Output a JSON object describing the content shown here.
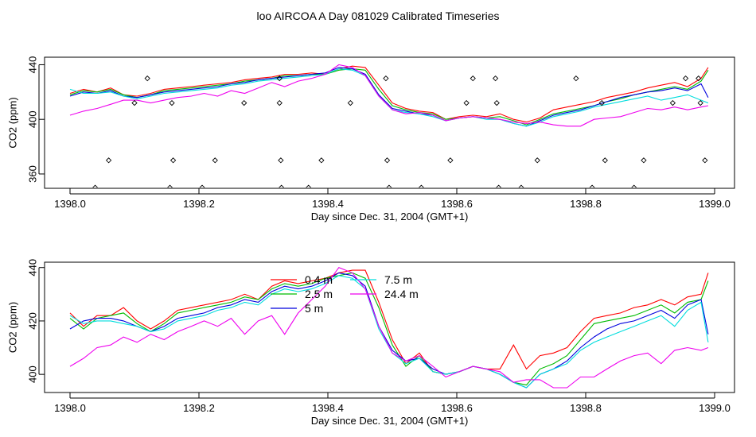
{
  "title": "loo AIRCOA A  Day 081029  Calibrated Timeseries",
  "chart_data": [
    {
      "type": "scatter",
      "xlabel": "Day since Dec. 31, 2004 (GMT+1)",
      "ylabel": "CO2 (ppm)",
      "xlim": [
        1398.0,
        1399.0
      ],
      "ylim": [
        349.5,
        445.5
      ],
      "xticks": [
        "1398.0",
        "1398.2",
        "1398.4",
        "1398.6",
        "1398.8",
        "1399.0"
      ],
      "yticks": [
        "360",
        "400",
        "440"
      ],
      "grid": false,
      "series": [
        {
          "color": "#ff0000",
          "x": [
            1398.0,
            1398.021,
            1398.042,
            1398.063,
            1398.083,
            1398.104,
            1398.125,
            1398.146,
            1398.167,
            1398.188,
            1398.208,
            1398.229,
            1398.25,
            1398.271,
            1398.292,
            1398.313,
            1398.333,
            1398.354,
            1398.375,
            1398.396,
            1398.417,
            1398.438,
            1398.458,
            1398.479,
            1398.5,
            1398.521,
            1398.542,
            1398.563,
            1398.583,
            1398.604,
            1398.625,
            1398.646,
            1398.667,
            1398.688,
            1398.708,
            1398.729,
            1398.75,
            1398.771,
            1398.792,
            1398.813,
            1398.833,
            1398.854,
            1398.875,
            1398.896,
            1398.917,
            1398.938,
            1398.958,
            1398.979,
            1398.99
          ],
          "y": [
            419,
            422,
            420,
            423,
            418,
            417,
            419,
            422,
            423,
            424,
            425,
            426,
            427,
            429,
            430,
            431,
            433,
            433,
            434,
            433,
            437,
            439,
            438,
            425,
            412,
            408,
            406,
            405,
            400,
            402,
            403,
            402,
            404,
            400,
            398,
            401,
            407,
            409,
            411,
            413,
            416,
            418,
            420,
            423,
            425,
            427,
            424,
            430,
            438
          ]
        },
        {
          "color": "#00bb00",
          "x": [
            1398.0,
            1398.021,
            1398.042,
            1398.063,
            1398.083,
            1398.104,
            1398.125,
            1398.146,
            1398.167,
            1398.188,
            1398.208,
            1398.229,
            1398.25,
            1398.271,
            1398.292,
            1398.313,
            1398.333,
            1398.354,
            1398.375,
            1398.396,
            1398.417,
            1398.438,
            1398.458,
            1398.479,
            1398.5,
            1398.521,
            1398.542,
            1398.563,
            1398.583,
            1398.604,
            1398.625,
            1398.646,
            1398.667,
            1398.688,
            1398.708,
            1398.729,
            1398.75,
            1398.771,
            1398.792,
            1398.813,
            1398.833,
            1398.854,
            1398.875,
            1398.896,
            1398.917,
            1398.938,
            1398.958,
            1398.979,
            1398.99
          ],
          "y": [
            418,
            421,
            420,
            422,
            418,
            416,
            418,
            421,
            422,
            423,
            424,
            425,
            426,
            428,
            429,
            430,
            432,
            432,
            433,
            433,
            436,
            437,
            436,
            422,
            410,
            407,
            405,
            404,
            400,
            401,
            402,
            401,
            402,
            399,
            396,
            400,
            404,
            406,
            408,
            410,
            413,
            415,
            418,
            420,
            422,
            424,
            422,
            428,
            436
          ]
        },
        {
          "color": "#0000dd",
          "x": [
            1398.0,
            1398.021,
            1398.042,
            1398.063,
            1398.083,
            1398.104,
            1398.125,
            1398.146,
            1398.167,
            1398.188,
            1398.208,
            1398.229,
            1398.25,
            1398.271,
            1398.292,
            1398.313,
            1398.333,
            1398.354,
            1398.375,
            1398.396,
            1398.417,
            1398.438,
            1398.458,
            1398.479,
            1398.5,
            1398.521,
            1398.542,
            1398.563,
            1398.583,
            1398.604,
            1398.625,
            1398.646,
            1398.667,
            1398.688,
            1398.708,
            1398.729,
            1398.75,
            1398.771,
            1398.792,
            1398.813,
            1398.833,
            1398.854,
            1398.875,
            1398.896,
            1398.917,
            1398.938,
            1398.958,
            1398.979,
            1398.99
          ],
          "y": [
            417,
            420,
            419,
            421,
            417,
            416,
            418,
            420,
            421,
            422,
            423,
            424,
            426,
            427,
            429,
            430,
            431,
            432,
            433,
            434,
            438,
            437,
            433,
            418,
            408,
            406,
            404,
            403,
            399,
            401,
            402,
            401,
            400,
            397,
            395,
            399,
            403,
            405,
            407,
            410,
            413,
            416,
            418,
            420,
            421,
            423,
            421,
            426,
            416
          ]
        },
        {
          "color": "#00dddd",
          "x": [
            1398.0,
            1398.021,
            1398.042,
            1398.063,
            1398.083,
            1398.104,
            1398.125,
            1398.146,
            1398.167,
            1398.188,
            1398.208,
            1398.229,
            1398.25,
            1398.271,
            1398.292,
            1398.313,
            1398.333,
            1398.354,
            1398.375,
            1398.396,
            1398.417,
            1398.438,
            1398.458,
            1398.479,
            1398.5,
            1398.521,
            1398.542,
            1398.563,
            1398.583,
            1398.604,
            1398.625,
            1398.646,
            1398.667,
            1398.688,
            1398.708,
            1398.729,
            1398.75,
            1398.771,
            1398.792,
            1398.813,
            1398.833,
            1398.854,
            1398.875,
            1398.896,
            1398.917,
            1398.938,
            1398.958,
            1398.979,
            1398.99
          ],
          "y": [
            422,
            419,
            419,
            420,
            417,
            415,
            417,
            419,
            420,
            421,
            422,
            423,
            425,
            426,
            428,
            429,
            430,
            431,
            432,
            433,
            437,
            436,
            432,
            417,
            407,
            405,
            404,
            402,
            399,
            401,
            402,
            400,
            400,
            397,
            395,
            398,
            402,
            404,
            406,
            409,
            411,
            413,
            415,
            417,
            414,
            416,
            418,
            414,
            412
          ]
        },
        {
          "color": "#ee00ee",
          "x": [
            1398.0,
            1398.021,
            1398.042,
            1398.063,
            1398.083,
            1398.104,
            1398.125,
            1398.146,
            1398.167,
            1398.188,
            1398.208,
            1398.229,
            1398.25,
            1398.271,
            1398.292,
            1398.313,
            1398.333,
            1398.354,
            1398.375,
            1398.396,
            1398.417,
            1398.438,
            1398.458,
            1398.479,
            1398.5,
            1398.521,
            1398.542,
            1398.563,
            1398.583,
            1398.604,
            1398.625,
            1398.646,
            1398.667,
            1398.688,
            1398.708,
            1398.729,
            1398.75,
            1398.771,
            1398.792,
            1398.813,
            1398.833,
            1398.854,
            1398.875,
            1398.896,
            1398.917,
            1398.938,
            1398.958,
            1398.979,
            1398.99
          ],
          "y": [
            403,
            406,
            408,
            411,
            414,
            414,
            412,
            414,
            416,
            417,
            419,
            417,
            421,
            419,
            423,
            427,
            424,
            428,
            430,
            433,
            440,
            438,
            432,
            417,
            407,
            404,
            405,
            403,
            399,
            401,
            402,
            401,
            400,
            398,
            397,
            398,
            396,
            395,
            395,
            400,
            401,
            402,
            405,
            408,
            407,
            409,
            407,
            409,
            410
          ]
        },
        {
          "color": "#000000",
          "x": [
            1398.039,
            1398.06,
            1398.1,
            1398.12,
            1398.155,
            1398.158,
            1398.16,
            1398.205,
            1398.225,
            1398.27,
            1398.325,
            1398.325,
            1398.327,
            1398.328,
            1398.37,
            1398.39,
            1398.435,
            1398.49,
            1398.492,
            1398.495,
            1398.545,
            1398.59,
            1398.615,
            1398.625,
            1398.66,
            1398.662,
            1398.665,
            1398.7,
            1398.725,
            1398.785,
            1398.81,
            1398.825,
            1398.83,
            1398.875,
            1398.89,
            1398.935,
            1398.955,
            1398.975,
            1398.978,
            1398.985
          ],
          "y": [
            350,
            370,
            412,
            430,
            350,
            412,
            370,
            350,
            370,
            412,
            430,
            412,
            370,
            350,
            350,
            370,
            412,
            430,
            370,
            350,
            350,
            370,
            412,
            430,
            430,
            412,
            350,
            350,
            370,
            430,
            350,
            412,
            370,
            350,
            370,
            412,
            430,
            430,
            412,
            370
          ]
        }
      ]
    },
    {
      "type": "line",
      "xlabel": "Day since Dec. 31, 2004 (GMT+1)",
      "ylabel": "CO2 (ppm)",
      "xlim": [
        1398.0,
        1399.0
      ],
      "ylim": [
        393.2,
        442.0
      ],
      "xticks": [
        "1398.0",
        "1398.2",
        "1398.4",
        "1398.6",
        "1398.8",
        "1399.0"
      ],
      "yticks": [
        "400",
        "420",
        "440"
      ],
      "grid": false,
      "legend": "top-center",
      "x": [
        1398.0,
        1398.021,
        1398.042,
        1398.063,
        1398.083,
        1398.104,
        1398.125,
        1398.146,
        1398.167,
        1398.188,
        1398.208,
        1398.229,
        1398.25,
        1398.271,
        1398.292,
        1398.313,
        1398.333,
        1398.354,
        1398.375,
        1398.396,
        1398.417,
        1398.438,
        1398.458,
        1398.479,
        1398.5,
        1398.521,
        1398.542,
        1398.563,
        1398.583,
        1398.604,
        1398.625,
        1398.646,
        1398.667,
        1398.688,
        1398.708,
        1398.729,
        1398.75,
        1398.771,
        1398.792,
        1398.813,
        1398.833,
        1398.854,
        1398.875,
        1398.896,
        1398.917,
        1398.938,
        1398.958,
        1398.979,
        1398.99
      ],
      "series": [
        {
          "name": "0.4 m",
          "color": "#ff0000",
          "values": [
            423,
            418,
            422,
            422,
            425,
            420,
            417,
            420,
            424,
            425,
            426,
            427,
            428,
            430,
            428,
            433,
            435,
            434,
            435,
            436,
            438,
            439,
            439,
            427,
            413,
            404,
            408,
            401,
            400,
            401,
            403,
            402,
            402,
            411,
            402,
            407,
            408,
            410,
            416,
            421,
            422,
            423,
            425,
            426,
            428,
            426,
            429,
            430,
            438
          ]
        },
        {
          "name": "2.5 m",
          "color": "#00bb00",
          "values": [
            421,
            417,
            421,
            422,
            423,
            419,
            416,
            419,
            423,
            424,
            425,
            426,
            427,
            429,
            428,
            432,
            434,
            433,
            434,
            436,
            437,
            438,
            436,
            425,
            411,
            403,
            407,
            401,
            400,
            401,
            403,
            402,
            400,
            397,
            396,
            402,
            404,
            407,
            413,
            419,
            420,
            421,
            422,
            424,
            426,
            423,
            427,
            428,
            435
          ]
        },
        {
          "name": "5 m",
          "color": "#0000dd",
          "values": [
            417,
            420,
            421,
            421,
            420,
            418,
            416,
            418,
            421,
            422,
            423,
            425,
            426,
            428,
            427,
            431,
            433,
            432,
            433,
            435,
            438,
            437,
            433,
            418,
            409,
            405,
            406,
            402,
            400,
            401,
            403,
            402,
            400,
            397,
            395,
            400,
            402,
            405,
            410,
            414,
            417,
            419,
            420,
            422,
            424,
            421,
            426,
            428,
            415
          ]
        },
        {
          "name": "7.5 m",
          "color": "#00dddd",
          "values": [
            422,
            419,
            420,
            420,
            419,
            418,
            416,
            417,
            420,
            421,
            422,
            424,
            425,
            427,
            426,
            430,
            432,
            431,
            432,
            434,
            437,
            436,
            432,
            417,
            408,
            404,
            406,
            401,
            400,
            401,
            403,
            402,
            400,
            397,
            395,
            400,
            402,
            404,
            409,
            412,
            414,
            416,
            418,
            420,
            422,
            418,
            424,
            427,
            412
          ]
        },
        {
          "name": "24.4 m",
          "color": "#ee00ee",
          "values": [
            403,
            406,
            410,
            411,
            414,
            412,
            415,
            413,
            416,
            418,
            420,
            418,
            421,
            415,
            420,
            422,
            415,
            423,
            428,
            433,
            440,
            438,
            432,
            418,
            408,
            405,
            407,
            403,
            399,
            401,
            403,
            402,
            401,
            397,
            398,
            398,
            395,
            395,
            399,
            399,
            402,
            405,
            407,
            408,
            404,
            409,
            410,
            409,
            410
          ]
        }
      ]
    }
  ]
}
